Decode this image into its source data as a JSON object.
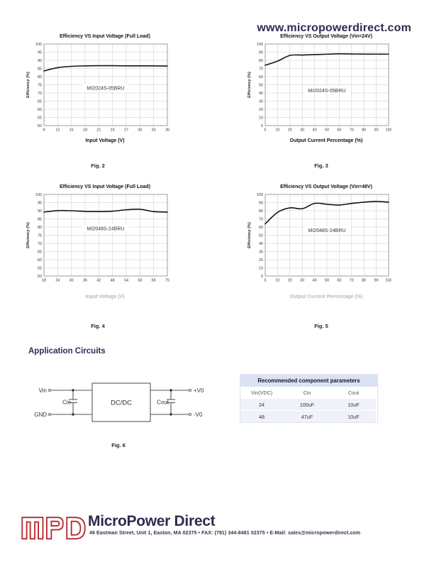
{
  "header": {
    "website_url": "www.micropowerdirect.com"
  },
  "section": {
    "application_circuits_title": "Application Circuits"
  },
  "chart_data": [
    {
      "type": "line",
      "title": "Efficiency VS Input Voltage (Full Load)",
      "model_label": "MI2024S-05BRU",
      "x_ticks": [
        "9",
        "12",
        "15",
        "18",
        "21",
        "24",
        "27",
        "30",
        "33",
        "36"
      ],
      "values": [
        83.5,
        85.5,
        86.3,
        86.6,
        86.7,
        86.7,
        86.6,
        86.6,
        86.6,
        86.5
      ],
      "xlabel": "Input Voltage (V)",
      "ylabel": "Efficiency (%)",
      "ylim": [
        50,
        100
      ],
      "y_step": 5,
      "grid": true,
      "xlabel_muted": false,
      "label_y_frac": 0.54,
      "caption": "Fig. 2"
    },
    {
      "type": "line",
      "title": "Efficiency VS Output Voltage (Vin=24V)",
      "model_label": "MI2024S-05BRU",
      "x_ticks": [
        "5",
        "10",
        "20",
        "30",
        "40",
        "50",
        "60",
        "70",
        "80",
        "90",
        "100"
      ],
      "values": [
        74,
        79,
        86,
        86.5,
        87,
        87.5,
        88,
        87.8,
        87.6,
        87.6,
        87.5
      ],
      "xlabel": "Output Current Percentage (%)",
      "ylabel": "Efficiency (%)",
      "ylim": [
        0,
        100
      ],
      "y_step": 10,
      "grid": true,
      "xlabel_muted": false,
      "label_y_frac": 0.57,
      "caption": "Fig. 3"
    },
    {
      "type": "line",
      "title": "Efficiency VS Input Voltage (Full Load)",
      "model_label": "MI2048S-24BRU",
      "x_ticks": [
        "18",
        "24",
        "30",
        "36",
        "42",
        "48",
        "54",
        "60",
        "66",
        "75"
      ],
      "values": [
        89.2,
        90.1,
        90.0,
        89.6,
        89.5,
        89.7,
        90.6,
        90.9,
        89.5,
        89.2
      ],
      "xlabel": "Input Voltage (V)",
      "ylabel": "Efficiency (%)",
      "ylim": [
        50,
        100
      ],
      "y_step": 5,
      "grid": true,
      "xlabel_muted": true,
      "label_y_frac": 0.42,
      "caption": "Fig. 4"
    },
    {
      "type": "line",
      "title": "Efficiency VS Output Voltage (Vin=48V)",
      "model_label": "MI2048S-24BRU",
      "x_ticks": [
        "5",
        "10",
        "20",
        "30",
        "40",
        "50",
        "60",
        "70",
        "80",
        "90",
        "100"
      ],
      "values": [
        64,
        78,
        83.5,
        82.5,
        89,
        88,
        87,
        89,
        90.5,
        91.5,
        90.5
      ],
      "xlabel": "Output Current Percentage (%)",
      "ylabel": "Efficiency (%)",
      "ylim": [
        0,
        100
      ],
      "y_step": 10,
      "grid": true,
      "xlabel_muted": true,
      "label_y_frac": 0.44,
      "caption": "Fig. 5"
    }
  ],
  "circuit": {
    "labels": {
      "vin": "Vin",
      "gnd": "GND",
      "cin": "Cin",
      "cout": "Cout",
      "box": "DC/DC",
      "vout_pos": "+V0",
      "vout_neg": "-V0"
    },
    "caption": "Fig. 6"
  },
  "table": {
    "title": "Recommended component parameters",
    "columns": [
      "Vin(VDC)",
      "Cin",
      "Cout"
    ],
    "rows": [
      [
        "24",
        "100uF",
        "10uF"
      ],
      [
        "48",
        "47uF",
        "10uF"
      ]
    ]
  },
  "footer": {
    "logo_text": "MPD",
    "company": "MicroPower Direct",
    "address": "46 Eastman Street, Unit 1, Easton, MA 02375 • FAX: (781) 344-8481 02375 • E-Mail: sales@micropowerdirect.com"
  },
  "colors": {
    "accent_navy": "#2d2b50",
    "logo_red": "#b5282f",
    "table_header_bg": "#dbe2f6",
    "grid_line": "#c9c9c9",
    "curve": "#141414",
    "muted_label": "#b9b9b9"
  }
}
